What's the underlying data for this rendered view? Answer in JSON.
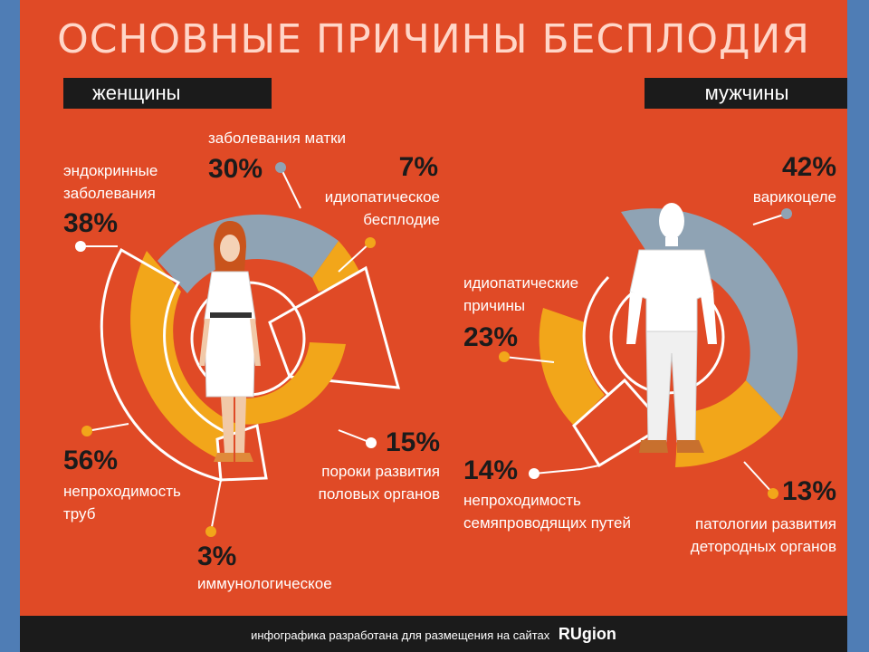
{
  "title": "ОСНОВНЫЕ ПРИЧИНЫ БЕСПЛОДИЯ",
  "women": {
    "label": "женщины",
    "causes": [
      {
        "pct": "30%",
        "text": "заболевания матки",
        "value": 30
      },
      {
        "pct": "7%",
        "text": "идиопатическое бесплодие",
        "value": 7
      },
      {
        "pct": "38%",
        "text": "эндокринные заболевания",
        "value": 38
      },
      {
        "pct": "15%",
        "text": "пороки развития половых органов",
        "value": 15
      },
      {
        "pct": "56%",
        "text": "непроходимость труб",
        "value": 56
      },
      {
        "pct": "3%",
        "text": "иммунологическое",
        "value": 3
      }
    ]
  },
  "men": {
    "label": "мужчины",
    "causes": [
      {
        "pct": "42%",
        "text": "варикоцеле",
        "value": 42
      },
      {
        "pct": "23%",
        "text": "идиопатические причины",
        "value": 23
      },
      {
        "pct": "14%",
        "text": "непроходимость семяпроводящих путей",
        "value": 14
      },
      {
        "pct": "13%",
        "text": "патологии развития детородных органов",
        "value": 13
      }
    ]
  },
  "footer": {
    "text": "инфографика разработана для размещения на сайтах",
    "brand": "RUgion"
  },
  "colors": {
    "background": "#e04a26",
    "gray": "#8fa3b4",
    "yellow": "#f2a61a",
    "white": "#ffffff",
    "dark": "#1b1b1b"
  }
}
